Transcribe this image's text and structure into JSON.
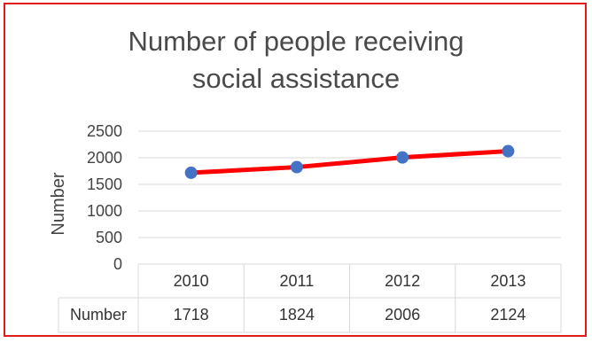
{
  "chart_data": {
    "type": "line",
    "title_lines": [
      "Number of people receiving",
      "social assistance"
    ],
    "xlabel": "",
    "ylabel": "Number",
    "categories": [
      "2010",
      "2011",
      "2012",
      "2013"
    ],
    "series": [
      {
        "name": "Number",
        "values": [
          1718,
          1824,
          2006,
          2124
        ],
        "line_color": "#ff0000",
        "marker_color": "#4472c4"
      }
    ],
    "ylim": [
      0,
      2500
    ],
    "yticks": [
      "0",
      "500",
      "1000",
      "1500",
      "2000",
      "2500"
    ],
    "grid": true,
    "legend": "none",
    "data_table": {
      "row_header": "Number",
      "values": [
        "1718",
        "1824",
        "2006",
        "2124"
      ]
    }
  },
  "colors": {
    "border": "#e31a1a",
    "gridline": "#d9d9d9",
    "text": "#444444"
  }
}
